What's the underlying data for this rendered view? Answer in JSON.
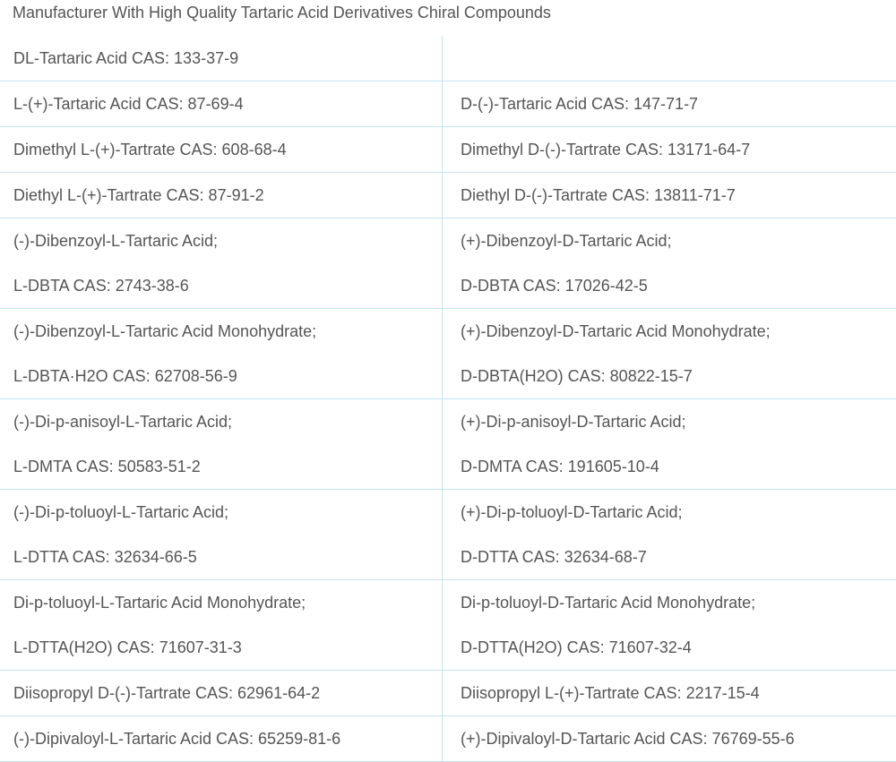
{
  "title": "Manufacturer With High Quality Tartaric Acid Derivatives Chiral Compounds",
  "colors": {
    "text": "#555555",
    "border": "#c4e3f6"
  },
  "rows": [
    {
      "left": [
        "DL-Tartaric Acid CAS: 133-37-9"
      ],
      "right": []
    },
    {
      "left": [
        "L-(+)-Tartaric Acid CAS: 87-69-4"
      ],
      "right": [
        "D-(-)-Tartaric Acid CAS: 147-71-7"
      ]
    },
    {
      "left": [
        "Dimethyl L-(+)-Tartrate CAS: 608-68-4"
      ],
      "right": [
        "Dimethyl D-(-)-Tartrate CAS: 13171-64-7"
      ]
    },
    {
      "left": [
        "Diethyl L-(+)-Tartrate CAS: 87-91-2"
      ],
      "right": [
        "Diethyl D-(-)-Tartrate CAS: 13811-71-7"
      ]
    },
    {
      "left": [
        "(-)-Dibenzoyl-L-Tartaric Acid;",
        "L-DBTA CAS: 2743-38-6"
      ],
      "right": [
        "(+)-Dibenzoyl-D-Tartaric Acid;",
        "D-DBTA CAS: 17026-42-5"
      ]
    },
    {
      "left": [
        "(-)-Dibenzoyl-L-Tartaric Acid Monohydrate;",
        "L-DBTA·H2O CAS: 62708-56-9"
      ],
      "right": [
        "(+)-Dibenzoyl-D-Tartaric Acid Monohydrate;",
        "D-DBTA(H2O) CAS: 80822-15-7"
      ]
    },
    {
      "left": [
        "(-)-Di-p-anisoyl-L-Tartaric Acid;",
        "L-DMTA CAS: 50583-51-2"
      ],
      "right": [
        "(+)-Di-p-anisoyl-D-Tartaric Acid;",
        "D-DMTA CAS: 191605-10-4"
      ]
    },
    {
      "left": [
        "(-)-Di-p-toluoyl-L-Tartaric Acid;",
        "L-DTTA CAS: 32634-66-5"
      ],
      "right": [
        "(+)-Di-p-toluoyl-D-Tartaric Acid;",
        "D-DTTA CAS: 32634-68-7"
      ]
    },
    {
      "left": [
        "Di-p-toluoyl-L-Tartaric Acid Monohydrate;",
        "L-DTTA(H2O) CAS: 71607-31-3"
      ],
      "right": [
        "Di-p-toluoyl-D-Tartaric Acid Monohydrate;",
        "D-DTTA(H2O) CAS: 71607-32-4"
      ]
    },
    {
      "left": [
        "Diisopropyl D-(-)-Tartrate CAS: 62961-64-2"
      ],
      "right": [
        "Diisopropyl L-(+)-Tartrate CAS: 2217-15-4"
      ]
    },
    {
      "left": [
        "(-)-Dipivaloyl-L-Tartaric Acid CAS: 65259-81-6"
      ],
      "right": [
        "(+)-Dipivaloyl-D-Tartaric Acid CAS: 76769-55-6"
      ]
    }
  ]
}
